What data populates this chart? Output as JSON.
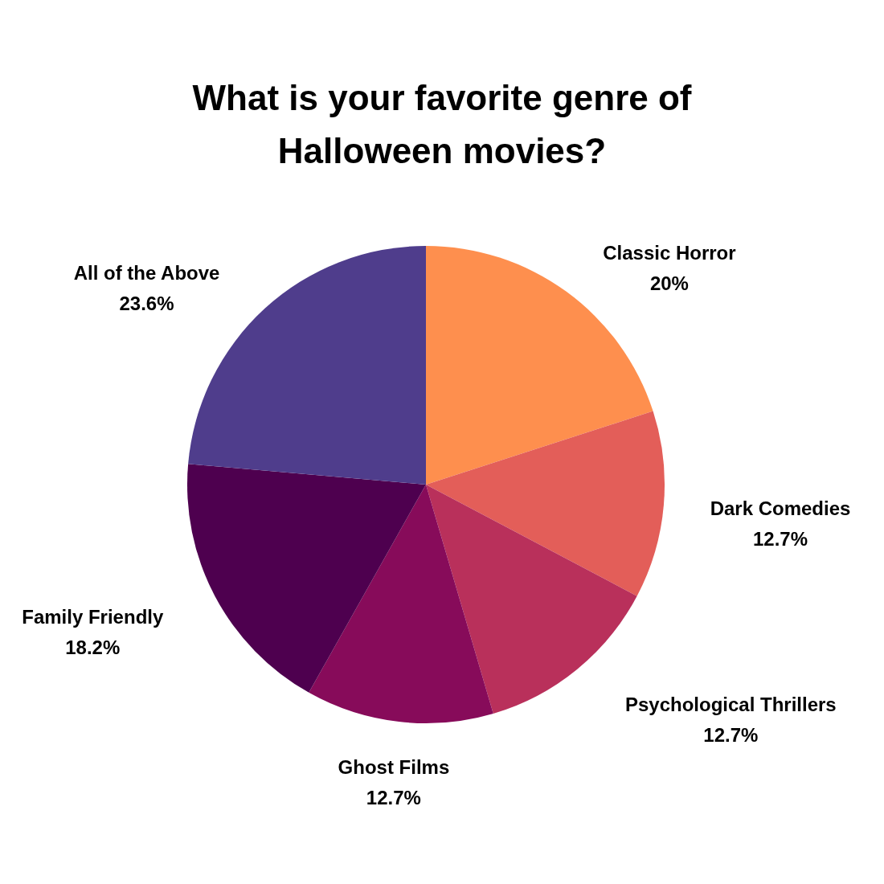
{
  "chart_data": {
    "type": "pie",
    "title": "What is your favorite genre of Halloween movies?",
    "categories": [
      "Classic Horror",
      "Dark Comedies",
      "Psychological Thrillers",
      "Ghost Films",
      "Family Friendly",
      "All of the Above"
    ],
    "values": [
      20,
      12.7,
      12.7,
      12.7,
      18.2,
      23.6
    ],
    "value_labels": [
      "20%",
      "12.7%",
      "12.7%",
      "12.7%",
      "18.2%",
      "23.6%"
    ],
    "colors": [
      "#fe8f4e",
      "#e35e59",
      "#b9305b",
      "#870b5a",
      "#4e004f",
      "#4f3d8c"
    ],
    "legend": false
  }
}
